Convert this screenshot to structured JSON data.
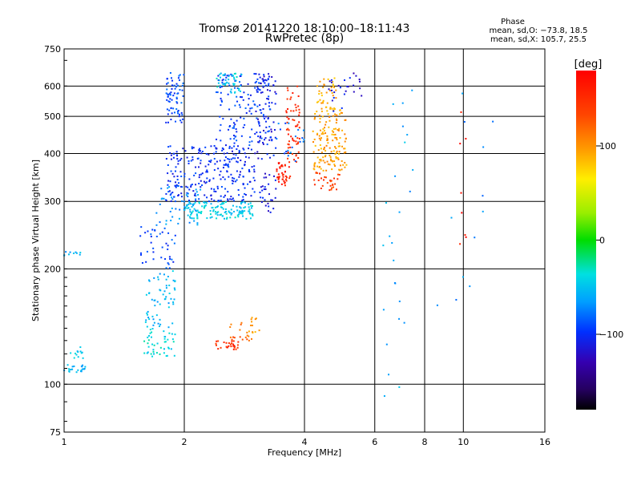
{
  "chart_data": {
    "type": "scatter",
    "title": "Tromsø 20141220 18:10:00–18:11:43",
    "subtitle": "RwPretec (8p)",
    "xlabel": "Frequency [MHz]",
    "ylabel": "Stationary phase Virtual Height [km]",
    "x_scale": "log2",
    "y_scale": "log",
    "xlim": [
      1,
      16
    ],
    "ylim": [
      75,
      750
    ],
    "x_ticks": [
      1,
      2,
      4,
      6,
      8,
      10,
      16
    ],
    "x_tick_labels": [
      "1",
      "2",
      "4",
      "6",
      "8",
      "10",
      "16"
    ],
    "y_ticks": [
      75,
      100,
      200,
      300,
      400,
      500,
      600,
      750
    ],
    "y_tick_labels": [
      "75",
      "100",
      "200",
      "300",
      "400",
      "500",
      "600",
      "750"
    ],
    "grid": true,
    "phase_info": {
      "title": "Phase",
      "line1": "mean, sd,O: −73.8, 18.5",
      "line2": "mean, sd,X: 105.7, 25.5"
    },
    "colorbar": {
      "label": "[deg]",
      "range": [
        -180,
        180
      ],
      "ticks": [
        100,
        0,
        -100
      ],
      "tick_labels": [
        "100",
        "0",
        "−100"
      ],
      "colormap": "rainbow"
    },
    "groups": [
      {
        "x": [
          1.0,
          1.13
        ],
        "y": [
          107,
          113
        ],
        "phase": -55,
        "n": 22
      },
      {
        "x": [
          1.02,
          1.12
        ],
        "y": [
          115,
          125
        ],
        "phase": -45,
        "n": 12
      },
      {
        "x": [
          1.0,
          1.12
        ],
        "y": [
          215,
          222
        ],
        "phase": -60,
        "n": 10
      },
      {
        "x": [
          1.55,
          1.9
        ],
        "y": [
          118,
          140
        ],
        "phase": -40,
        "n": 45
      },
      {
        "x": [
          1.6,
          1.9
        ],
        "y": [
          140,
          200
        ],
        "phase": -55,
        "n": 60
      },
      {
        "x": [
          1.55,
          1.9
        ],
        "y": [
          200,
          260
        ],
        "phase": -90,
        "n": 40
      },
      {
        "x": [
          1.7,
          2.2
        ],
        "y": [
          260,
          330
        ],
        "phase": -70,
        "n": 50
      },
      {
        "x": [
          1.8,
          2.0
        ],
        "y": [
          480,
          650
        ],
        "phase": -90,
        "n": 70
      },
      {
        "x": [
          2.0,
          3.0
        ],
        "y": [
          270,
          300
        ],
        "phase": -45,
        "n": 140
      },
      {
        "x": [
          1.8,
          3.0
        ],
        "y": [
          300,
          420
        ],
        "phase": -100,
        "n": 260
      },
      {
        "x": [
          2.4,
          3.3
        ],
        "y": [
          420,
          650
        ],
        "phase": -95,
        "n": 150
      },
      {
        "x": [
          2.4,
          2.8
        ],
        "y": [
          575,
          650
        ],
        "phase": -45,
        "n": 40
      },
      {
        "x": [
          3.0,
          3.4
        ],
        "y": [
          280,
          650
        ],
        "phase": -110,
        "n": 90
      },
      {
        "x": [
          2.4,
          2.75
        ],
        "y": [
          123,
          130
        ],
        "phase": 150,
        "n": 28
      },
      {
        "x": [
          2.6,
          2.95
        ],
        "y": [
          128,
          145
        ],
        "phase": 120,
        "n": 18
      },
      {
        "x": [
          2.9,
          3.1
        ],
        "y": [
          135,
          150
        ],
        "phase": 90,
        "n": 12
      },
      {
        "x": [
          3.4,
          3.7
        ],
        "y": [
          330,
          380
        ],
        "phase": 160,
        "n": 40
      },
      {
        "x": [
          3.6,
          3.9
        ],
        "y": [
          380,
          600
        ],
        "phase": 150,
        "n": 60
      },
      {
        "x": [
          3.3,
          4.0
        ],
        "y": [
          380,
          480
        ],
        "phase": -80,
        "n": 20
      },
      {
        "x": [
          4.2,
          4.9
        ],
        "y": [
          320,
          360
        ],
        "phase": 140,
        "n": 30
      },
      {
        "x": [
          4.2,
          5.1
        ],
        "y": [
          360,
          520
        ],
        "phase": 95,
        "n": 150
      },
      {
        "x": [
          4.3,
          4.8
        ],
        "y": [
          520,
          640
        ],
        "phase": 90,
        "n": 40
      },
      {
        "x": [
          4.6,
          5.2
        ],
        "y": [
          500,
          640
        ],
        "phase": -110,
        "n": 18
      },
      {
        "x": [
          5.3,
          5.6
        ],
        "y": [
          560,
          650
        ],
        "phase": -120,
        "n": 8
      },
      {
        "x": [
          6.3,
          7.5
        ],
        "y": [
          90,
          600
        ],
        "phase": -60,
        "n": 25
      },
      {
        "x": [
          8.5,
          12.5
        ],
        "y": [
          160,
          620
        ],
        "phase": -70,
        "n": 12
      },
      {
        "x": [
          9.8,
          10.2
        ],
        "y": [
          200,
          550
        ],
        "phase": 165,
        "n": 8
      }
    ]
  }
}
